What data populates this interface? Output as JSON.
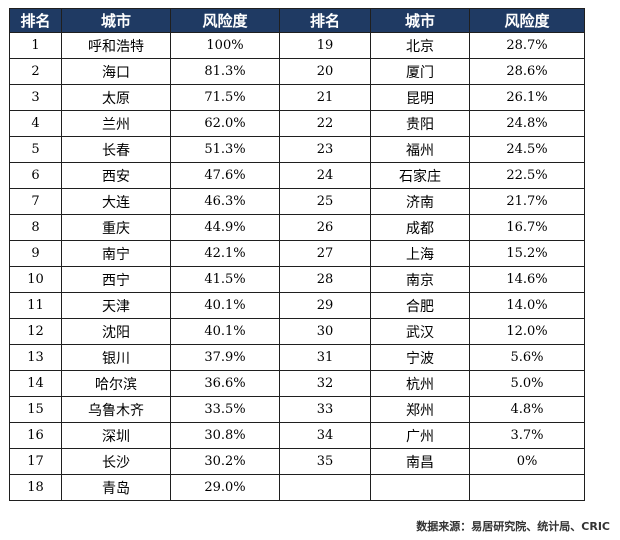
{
  "table": {
    "headers": [
      "排名",
      "城市",
      "风险度",
      "排名",
      "城市",
      "风险度"
    ],
    "rows": [
      [
        "1",
        "呼和浩特",
        "100%",
        "19",
        "北京",
        "28.7%"
      ],
      [
        "2",
        "海口",
        "81.3%",
        "20",
        "厦门",
        "28.6%"
      ],
      [
        "3",
        "太原",
        "71.5%",
        "21",
        "昆明",
        "26.1%"
      ],
      [
        "4",
        "兰州",
        "62.0%",
        "22",
        "贵阳",
        "24.8%"
      ],
      [
        "5",
        "长春",
        "51.3%",
        "23",
        "福州",
        "24.5%"
      ],
      [
        "6",
        "西安",
        "47.6%",
        "24",
        "石家庄",
        "22.5%"
      ],
      [
        "7",
        "大连",
        "46.3%",
        "25",
        "济南",
        "21.7%"
      ],
      [
        "8",
        "重庆",
        "44.9%",
        "26",
        "成都",
        "16.7%"
      ],
      [
        "9",
        "南宁",
        "42.1%",
        "27",
        "上海",
        "15.2%"
      ],
      [
        "10",
        "西宁",
        "41.5%",
        "28",
        "南京",
        "14.6%"
      ],
      [
        "11",
        "天津",
        "40.1%",
        "29",
        "合肥",
        "14.0%"
      ],
      [
        "12",
        "沈阳",
        "40.1%",
        "30",
        "武汉",
        "12.0%"
      ],
      [
        "13",
        "银川",
        "37.9%",
        "31",
        "宁波",
        "5.6%"
      ],
      [
        "14",
        "哈尔滨",
        "36.6%",
        "32",
        "杭州",
        "5.0%"
      ],
      [
        "15",
        "乌鲁木齐",
        "33.5%",
        "33",
        "郑州",
        "4.8%"
      ],
      [
        "16",
        "深圳",
        "30.8%",
        "34",
        "广州",
        "3.7%"
      ],
      [
        "17",
        "长沙",
        "30.2%",
        "35",
        "南昌",
        "0%"
      ],
      [
        "18",
        "青岛",
        "29.0%",
        "",
        "",
        ""
      ]
    ]
  },
  "source": "数据来源：易居研究院、统计局、CRIC",
  "colors": {
    "header_bg": "#1f3a63",
    "header_text": "#ffffff",
    "border": "#1f1f1f"
  }
}
